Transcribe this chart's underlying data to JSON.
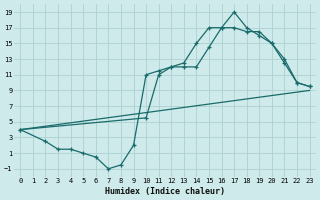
{
  "xlabel": "Humidex (Indice chaleur)",
  "bg_color": "#ceeaea",
  "grid_color": "#aed0d0",
  "line_color": "#1a6b6b",
  "xlim": [
    -0.5,
    23.5
  ],
  "ylim": [
    -2,
    20
  ],
  "xticks": [
    0,
    1,
    2,
    3,
    4,
    5,
    6,
    7,
    8,
    9,
    10,
    11,
    12,
    13,
    14,
    15,
    16,
    17,
    18,
    19,
    20,
    21,
    22,
    23
  ],
  "yticks": [
    -1,
    1,
    3,
    5,
    7,
    9,
    11,
    13,
    15,
    17,
    19
  ],
  "line1_x": [
    0,
    2,
    3,
    4,
    5,
    6,
    7,
    8,
    9,
    10,
    11,
    12,
    13,
    14,
    15,
    16,
    17,
    18,
    19,
    20,
    21,
    22,
    23
  ],
  "line1_y": [
    4,
    2.5,
    1.5,
    1.5,
    1,
    0.5,
    -1,
    -0.5,
    2,
    11,
    11.5,
    12,
    12.5,
    15,
    17,
    17,
    19,
    17,
    16,
    15,
    13,
    10,
    9.5
  ],
  "line2_x": [
    0,
    10,
    11,
    12,
    13,
    14,
    15,
    16,
    17,
    18,
    19,
    20,
    21,
    22,
    23
  ],
  "line2_y": [
    4,
    5.5,
    11,
    12,
    12,
    12,
    14.5,
    17,
    17,
    16.5,
    16.5,
    15,
    12.5,
    10,
    9.5
  ],
  "line3_x": [
    0,
    23
  ],
  "line3_y": [
    4,
    9
  ]
}
